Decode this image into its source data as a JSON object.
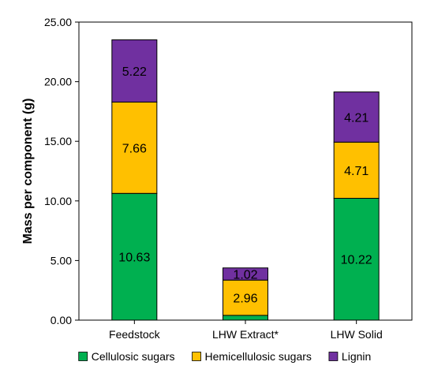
{
  "chart_data": {
    "type": "bar",
    "stacked": true,
    "title": "",
    "xlabel": "",
    "ylabel": "Mass per component (g)",
    "ylim": [
      0,
      25
    ],
    "yticks": [
      "0.00",
      "5.00",
      "10.00",
      "15.00",
      "20.00",
      "25.00"
    ],
    "categories": [
      "Feedstock",
      "LHW Extract*",
      "LHW Solid"
    ],
    "series": [
      {
        "name": "Cellulosic sugars",
        "color": "#00b050",
        "values": [
          10.63,
          0.4,
          10.22
        ],
        "labels": [
          "10.63",
          "",
          "10.22"
        ]
      },
      {
        "name": "Hemicellulosic sugars",
        "color": "#ffc000",
        "values": [
          7.66,
          2.96,
          4.71
        ],
        "labels": [
          "7.66",
          "2.96",
          "4.71"
        ]
      },
      {
        "name": "Lignin",
        "color": "#7030a0",
        "values": [
          5.22,
          1.02,
          4.21
        ],
        "labels": [
          "5.22",
          "1.02",
          "4.21"
        ]
      }
    ],
    "grid": false,
    "legend": "bottom"
  }
}
